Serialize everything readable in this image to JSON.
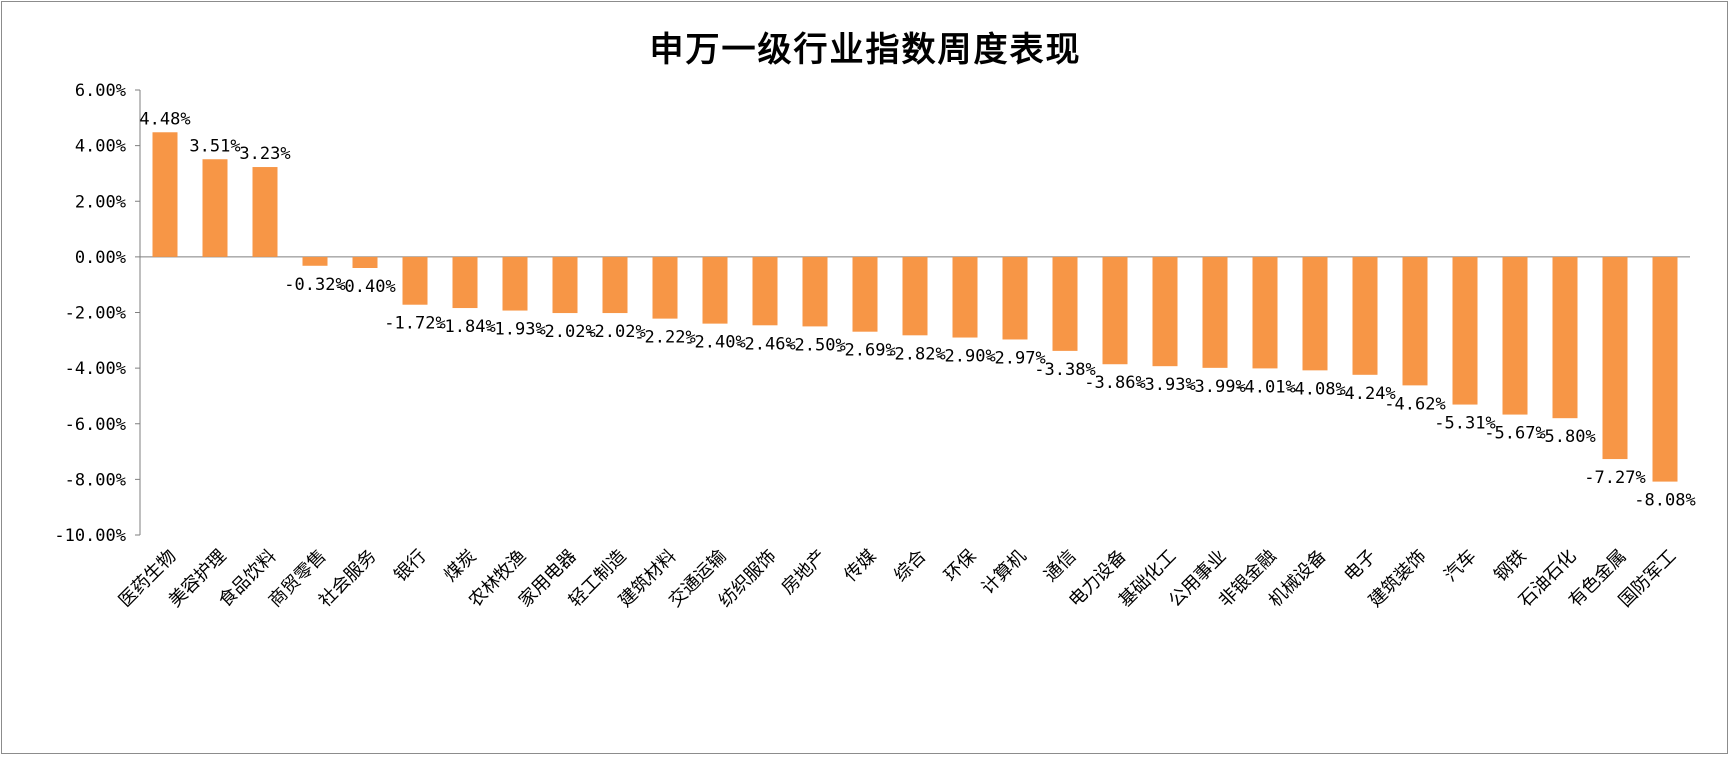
{
  "chart_data": {
    "type": "bar",
    "title": "申万一级行业指数周度表现",
    "xlabel": "",
    "ylabel": "",
    "ylim": [
      -10,
      6
    ],
    "y_ticks": [
      "6.00%",
      "4.00%",
      "2.00%",
      "0.00%",
      "-2.00%",
      "-4.00%",
      "-6.00%",
      "-8.00%",
      "-10.00%"
    ],
    "grid": false,
    "legend": "none",
    "bar_color": "#F79646",
    "categories": [
      "医药生物",
      "美容护理",
      "食品饮料",
      "商贸零售",
      "社会服务",
      "银行",
      "煤炭",
      "农林牧渔",
      "家用电器",
      "轻工制造",
      "建筑材料",
      "交通运输",
      "纺织服饰",
      "房地产",
      "传媒",
      "综合",
      "环保",
      "计算机",
      "通信",
      "电力设备",
      "基础化工",
      "公用事业",
      "非银金融",
      "机械设备",
      "电子",
      "建筑装饰",
      "汽车",
      "钢铁",
      "石油石化",
      "有色金属",
      "国防军工"
    ],
    "values": [
      4.48,
      3.51,
      3.23,
      -0.32,
      -0.4,
      -1.72,
      -1.84,
      -1.93,
      -2.02,
      -2.02,
      -2.22,
      -2.4,
      -2.46,
      -2.5,
      -2.69,
      -2.82,
      -2.9,
      -2.97,
      -3.38,
      -3.86,
      -3.93,
      -3.99,
      -4.01,
      -4.08,
      -4.24,
      -4.62,
      -5.31,
      -5.67,
      -5.8,
      -7.27,
      -8.08
    ],
    "data_labels": [
      "4.48%",
      "3.51%",
      "3.23%",
      "-0.32%",
      "-0.40%",
      "-1.72%",
      "-1.84%",
      "-1.93%",
      "-2.02%",
      "-2.02%",
      "-2.22%",
      "-2.40%",
      "-2.46%",
      "-2.50%",
      "-2.69%",
      "-2.82%",
      "-2.90%",
      "-2.97%",
      "-3.38%",
      "-3.86%",
      "-3.93%",
      "-3.99%",
      "-4.01%",
      "-4.08%",
      "-4.24%",
      "-4.62%",
      "-5.31%",
      "-5.67%",
      "-5.80%",
      "-7.27%",
      "-8.08%"
    ]
  }
}
